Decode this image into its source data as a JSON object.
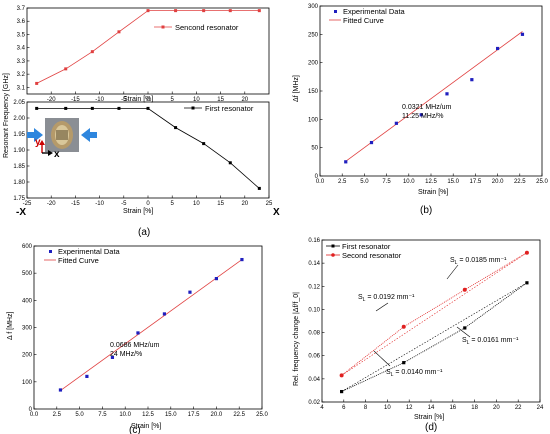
{
  "panels": [
    {
      "id": "a",
      "caption": "(a)",
      "top": {
        "ylabel": "Resonant Frequency [GHz]",
        "xlabel": "Strain [%]",
        "xlim": [
          -25,
          25
        ],
        "ylim": [
          3.05,
          3.7
        ],
        "xticks": [
          "-20",
          "-15",
          "-10",
          "-5",
          "0",
          "5",
          "10",
          "15",
          "20"
        ],
        "xtick_values": [
          -20,
          -15,
          -10,
          -5,
          0,
          5,
          10,
          15,
          20
        ],
        "yticks": [
          "3.1",
          "3.2",
          "3.3",
          "3.4",
          "3.5",
          "3.6",
          "3.7"
        ],
        "ytick_values": [
          3.1,
          3.2,
          3.3,
          3.4,
          3.5,
          3.6,
          3.7
        ],
        "series": [
          {
            "name": "Sencond resonator",
            "color": "#e04040",
            "x": [
              -23,
              -17,
              -11.5,
              -6,
              0,
              5.7,
              11.5,
              17,
              23
            ],
            "y": [
              3.13,
              3.24,
              3.37,
              3.52,
              3.68,
              3.68,
              3.68,
              3.68,
              3.68
            ]
          }
        ]
      },
      "bottom": {
        "xlabel": "Strain [%]",
        "xlim": [
          -25,
          25
        ],
        "ylim": [
          1.75,
          2.05
        ],
        "xticks": [
          "-25",
          "-20",
          "-15",
          "-10",
          "-5",
          "0",
          "5",
          "10",
          "15",
          "20",
          "25"
        ],
        "xtick_values": [
          -25,
          -20,
          -15,
          -10,
          -5,
          0,
          5,
          10,
          15,
          20,
          25
        ],
        "yticks": [
          "1.75",
          "1.80",
          "1.85",
          "1.90",
          "1.95",
          "2.00",
          "2.05"
        ],
        "ytick_values": [
          1.75,
          1.8,
          1.85,
          1.9,
          1.95,
          2.0,
          2.05
        ],
        "series": [
          {
            "name": "First resonator",
            "color": "#000000",
            "x": [
              -23,
              -17,
              -11.5,
              -6,
              0,
              5.7,
              11.5,
              17,
              23
            ],
            "y": [
              2.03,
              2.03,
              2.03,
              2.03,
              2.03,
              1.97,
              1.92,
              1.86,
              1.78
            ]
          }
        ]
      },
      "inset_labels": {
        "y": "y",
        "x": "x",
        "left": "-X",
        "right": "X"
      }
    },
    {
      "id": "b",
      "caption": "(b)",
      "xlabel": "Strain [%]",
      "ylabel": "Δf [MHz]",
      "xlim": [
        0,
        25
      ],
      "ylim": [
        0,
        300
      ],
      "xticks": [
        "0.0",
        "2.5",
        "5.0",
        "7.5",
        "10.0",
        "12.5",
        "15.0",
        "17.5",
        "20.0",
        "22.5",
        "25.0"
      ],
      "xtick_values": [
        0,
        2.5,
        5,
        7.5,
        10,
        12.5,
        15,
        17.5,
        20,
        22.5,
        25
      ],
      "yticks": [
        "0",
        "50",
        "100",
        "150",
        "200",
        "250",
        "300"
      ],
      "ytick_values": [
        0,
        50,
        100,
        150,
        200,
        250,
        300
      ],
      "legend": [
        "Experimental Data",
        "Fitted Curve"
      ],
      "annotation": [
        "0.0321 MHz/um",
        "11.25 MHz/%"
      ],
      "points": {
        "x": [
          2.9,
          5.8,
          8.6,
          11.4,
          14.3,
          17.1,
          20.0,
          22.8
        ],
        "y": [
          25,
          59,
          93,
          108,
          145,
          170,
          225,
          250
        ]
      },
      "fit": {
        "x": [
          2.9,
          22.8
        ],
        "y": [
          26,
          255
        ]
      }
    },
    {
      "id": "c",
      "caption": "(c)",
      "xlabel": "Strain [%]",
      "ylabel": "Δ f [MHz]",
      "xlim": [
        0,
        25
      ],
      "ylim": [
        0,
        600
      ],
      "xticks": [
        "0.0",
        "2.5",
        "5.0",
        "7.5",
        "10.0",
        "12.5",
        "15.0",
        "17.5",
        "20.0",
        "22.5",
        "25.0"
      ],
      "xtick_values": [
        0,
        2.5,
        5,
        7.5,
        10,
        12.5,
        15,
        17.5,
        20,
        22.5,
        25
      ],
      "yticks": [
        "0",
        "100",
        "200",
        "300",
        "400",
        "500",
        "600"
      ],
      "ytick_values": [
        0,
        100,
        200,
        300,
        400,
        500,
        600
      ],
      "legend": [
        "Experimental Data",
        "Fitted Curve"
      ],
      "annotation": [
        "0.0686 MHz/um",
        "24 MHz/%"
      ],
      "points": {
        "x": [
          2.9,
          5.8,
          8.6,
          11.4,
          14.3,
          17.1,
          20.0,
          22.8
        ],
        "y": [
          70,
          120,
          190,
          280,
          350,
          430,
          480,
          550
        ]
      },
      "fit": {
        "x": [
          2.9,
          22.8
        ],
        "y": [
          68,
          550
        ]
      }
    },
    {
      "id": "d",
      "caption": "(d)",
      "xlabel": "Strain [%]",
      "ylabel": "Rel. frequency change |Δf/f_0|",
      "xlim": [
        4,
        24
      ],
      "ylim": [
        0.02,
        0.16
      ],
      "xticks": [
        "4",
        "6",
        "8",
        "10",
        "12",
        "14",
        "16",
        "18",
        "20",
        "22",
        "24"
      ],
      "xtick_values": [
        4,
        6,
        8,
        10,
        12,
        14,
        16,
        18,
        20,
        22,
        24
      ],
      "yticks": [
        "0.02",
        "0.04",
        "0.06",
        "0.08",
        "0.10",
        "0.12",
        "0.14",
        "0.16"
      ],
      "ytick_values": [
        0.02,
        0.04,
        0.06,
        0.08,
        0.1,
        0.12,
        0.14,
        0.16
      ],
      "series": [
        {
          "name": "First resonator",
          "color": "#000000",
          "x": [
            5.8,
            11.5,
            17.1,
            22.8
          ],
          "y": [
            0.029,
            0.054,
            0.084,
            0.123
          ]
        },
        {
          "name": "Second resonator",
          "color": "#e02020",
          "x": [
            5.8,
            11.5,
            17.1,
            22.8
          ],
          "y": [
            0.043,
            0.085,
            0.117,
            0.149
          ]
        }
      ],
      "slopes": [
        {
          "text": "S",
          "sub": "L",
          "value": " = 0.0185 mm⁻¹"
        },
        {
          "text": "S",
          "sub": "L",
          "value": " = 0.0192 mm⁻¹"
        },
        {
          "text": "S",
          "sub": "L",
          "value": " = 0.0161 mm⁻¹"
        },
        {
          "text": "S",
          "sub": "L",
          "value": " = 0.0140 mm⁻¹"
        }
      ]
    }
  ]
}
